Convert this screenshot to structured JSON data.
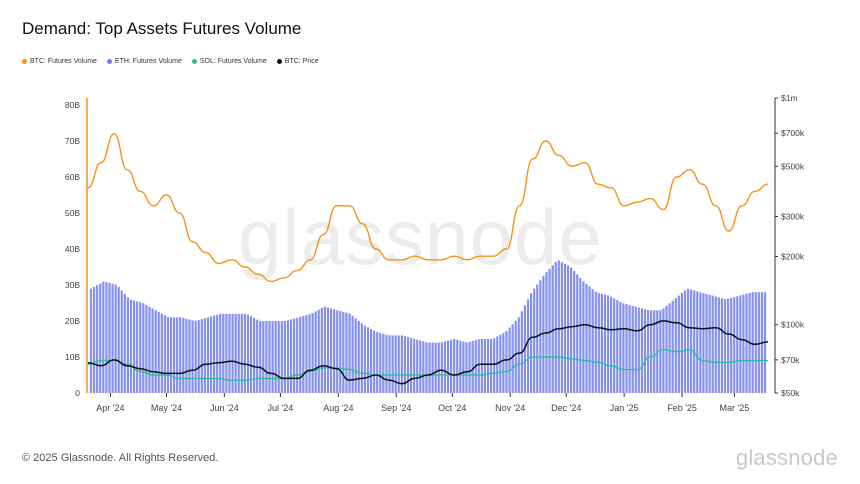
{
  "title": "Demand: Top Assets Futures Volume",
  "footer": "© 2025 Glassnode. All Rights Reserved.",
  "brand": "glassnode",
  "watermark": "glassnode",
  "legend": [
    {
      "label": "BTC: Futures Volume",
      "color": "#f7931a"
    },
    {
      "label": "ETH: Futures Volume",
      "color": "#6f7de8"
    },
    {
      "label": "SOL: Futures Volume",
      "color": "#2ebf9a"
    },
    {
      "label": "BTC: Price",
      "color": "#111111"
    }
  ],
  "chart_data": {
    "type": "line",
    "x": [
      "2024-03-20",
      "2024-03-27",
      "2024-04-03",
      "2024-04-10",
      "2024-04-17",
      "2024-04-24",
      "2024-05-01",
      "2024-05-08",
      "2024-05-15",
      "2024-05-22",
      "2024-05-29",
      "2024-06-05",
      "2024-06-12",
      "2024-06-19",
      "2024-06-26",
      "2024-07-03",
      "2024-07-10",
      "2024-07-17",
      "2024-07-24",
      "2024-07-31",
      "2024-08-07",
      "2024-08-14",
      "2024-08-21",
      "2024-08-28",
      "2024-09-04",
      "2024-09-11",
      "2024-09-18",
      "2024-09-25",
      "2024-10-02",
      "2024-10-09",
      "2024-10-16",
      "2024-10-23",
      "2024-10-30",
      "2024-11-06",
      "2024-11-13",
      "2024-11-20",
      "2024-11-27",
      "2024-12-04",
      "2024-12-11",
      "2024-12-18",
      "2024-12-25",
      "2025-01-01",
      "2025-01-08",
      "2025-01-15",
      "2025-01-22",
      "2025-01-29",
      "2025-02-05",
      "2025-02-12",
      "2025-02-19",
      "2025-02-26",
      "2025-03-05",
      "2025-03-12",
      "2025-03-19"
    ],
    "x_tick_labels": [
      "Apr '24",
      "May '24",
      "Jun '24",
      "Jul '24",
      "Aug '24",
      "Sep '24",
      "Oct '24",
      "Nov '24",
      "Dec '24",
      "Jan '25",
      "Feb '25",
      "Mar '25"
    ],
    "x_tick_dates": [
      "2024-04-01",
      "2024-05-01",
      "2024-06-01",
      "2024-07-01",
      "2024-08-01",
      "2024-09-01",
      "2024-10-01",
      "2024-11-01",
      "2024-12-01",
      "2025-01-01",
      "2025-02-01",
      "2025-03-01"
    ],
    "y_left": {
      "ticks": [
        0,
        10,
        20,
        30,
        40,
        50,
        60,
        70,
        80
      ],
      "tick_labels": [
        "0",
        "10B",
        "20B",
        "30B",
        "40B",
        "50B",
        "60B",
        "70B",
        "80B"
      ],
      "ylim": [
        0,
        80
      ],
      "unit": "B"
    },
    "y_right": {
      "scale": "log",
      "ticks": [
        50000,
        70000,
        100000,
        200000,
        300000,
        500000,
        700000,
        1000000
      ],
      "tick_labels": [
        "$50k",
        "$70k",
        "$100k",
        "$200k",
        "$300k",
        "$500k",
        "$700k",
        "$1m"
      ],
      "ylim": [
        50000,
        1000000
      ]
    },
    "series": [
      {
        "name": "BTC: Futures Volume",
        "axis": "left",
        "style": "line",
        "color": "#f7931a",
        "values": [
          57,
          64,
          72,
          62,
          56,
          52,
          55,
          50,
          42,
          39,
          36,
          37,
          35,
          33,
          31,
          32,
          34,
          37,
          44,
          52,
          52,
          47,
          40,
          37,
          37,
          38,
          37,
          37,
          38,
          37,
          38,
          38,
          40,
          52,
          65,
          70,
          66,
          63,
          64,
          58,
          57,
          52,
          53,
          54,
          51,
          60,
          62,
          58,
          52,
          45,
          52,
          56,
          58
        ]
      },
      {
        "name": "ETH: Futures Volume",
        "axis": "left",
        "style": "bar",
        "color": "#6f7de8",
        "values": [
          29,
          31,
          30,
          26,
          25,
          23,
          21,
          21,
          20,
          21,
          22,
          22,
          22,
          20,
          20,
          20,
          21,
          22,
          24,
          23,
          22,
          19,
          17,
          16,
          16,
          15,
          14,
          14,
          15,
          14,
          15,
          15,
          17,
          21,
          28,
          33,
          37,
          35,
          31,
          28,
          27,
          25,
          24,
          23,
          23,
          26,
          29,
          28,
          27,
          26,
          27,
          28,
          28
        ]
      },
      {
        "name": "SOL: Futures Volume",
        "axis": "left",
        "style": "line",
        "color": "#2ebf9a",
        "values": [
          8,
          9,
          9,
          8,
          6,
          5,
          5,
          4,
          4,
          4,
          4,
          3.5,
          3.5,
          4,
          4,
          4,
          5,
          6,
          7,
          7,
          6.5,
          5.5,
          5,
          5,
          5,
          5,
          5,
          5,
          5,
          5,
          5,
          5.5,
          6,
          8,
          10,
          10,
          10,
          9.5,
          9,
          8.5,
          7.5,
          6.5,
          6.5,
          10,
          12,
          11.5,
          12,
          9,
          8.5,
          8.5,
          9,
          9,
          9
        ]
      },
      {
        "name": "BTC: Price",
        "axis": "right",
        "style": "line",
        "color": "#111111",
        "values": [
          68000,
          66000,
          70000,
          66000,
          64000,
          62000,
          61000,
          61000,
          63000,
          67000,
          68000,
          69000,
          67000,
          65000,
          61000,
          58000,
          58000,
          63000,
          66000,
          64000,
          57000,
          58000,
          60000,
          57000,
          55000,
          58000,
          60000,
          63000,
          60000,
          62000,
          67000,
          67000,
          70000,
          75000,
          88000,
          92000,
          96000,
          98000,
          100000,
          97000,
          95000,
          96000,
          94000,
          100000,
          104000,
          102000,
          97000,
          96000,
          97000,
          91000,
          86000,
          82000,
          84000
        ]
      }
    ]
  }
}
